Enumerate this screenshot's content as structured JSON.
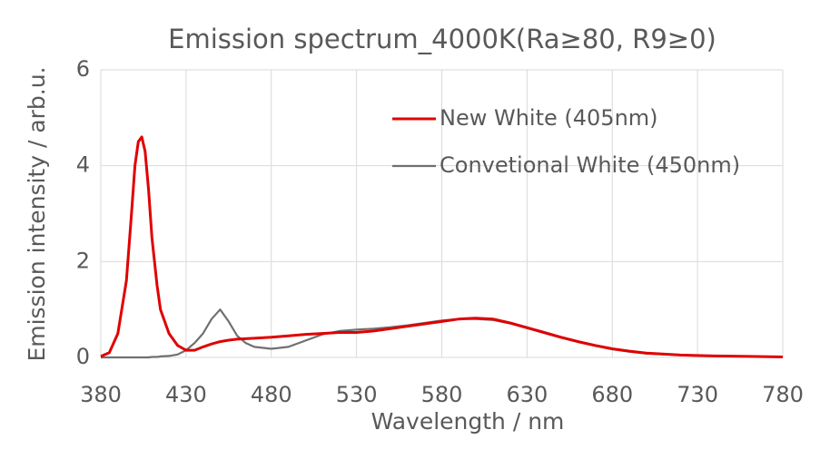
{
  "chart_data": {
    "type": "line",
    "title": "Emission spectrum_4000K(Ra≥80, R9≥0)",
    "x_label": "Wavelength / nm",
    "y_label": "Emission intensity / arb.u.",
    "x": [
      380,
      385,
      390,
      395,
      398,
      400,
      402,
      404,
      406,
      408,
      410,
      413,
      415,
      420,
      425,
      430,
      435,
      440,
      445,
      450,
      455,
      460,
      465,
      470,
      480,
      490,
      500,
      510,
      520,
      530,
      540,
      550,
      560,
      570,
      580,
      590,
      600,
      610,
      620,
      630,
      640,
      650,
      660,
      670,
      680,
      690,
      700,
      720,
      740,
      760,
      780
    ],
    "series": [
      {
        "name": "New White (405nm)",
        "color": "#e00000",
        "values": [
          0.02,
          0.1,
          0.5,
          1.6,
          3.0,
          4.0,
          4.5,
          4.6,
          4.3,
          3.5,
          2.5,
          1.5,
          1.0,
          0.5,
          0.25,
          0.15,
          0.15,
          0.22,
          0.28,
          0.33,
          0.36,
          0.38,
          0.39,
          0.4,
          0.42,
          0.45,
          0.48,
          0.5,
          0.52,
          0.52,
          0.55,
          0.6,
          0.65,
          0.7,
          0.75,
          0.8,
          0.82,
          0.8,
          0.72,
          0.62,
          0.52,
          0.42,
          0.33,
          0.25,
          0.18,
          0.13,
          0.09,
          0.05,
          0.03,
          0.02,
          0.01
        ]
      },
      {
        "name": "Convetional White (450nm)",
        "color": "#707070",
        "values": [
          0,
          0,
          0,
          0,
          0,
          0,
          0,
          0,
          0,
          0,
          0.01,
          0.01,
          0.02,
          0.03,
          0.06,
          0.15,
          0.3,
          0.5,
          0.8,
          1.0,
          0.75,
          0.45,
          0.3,
          0.22,
          0.18,
          0.22,
          0.35,
          0.48,
          0.55,
          0.58,
          0.6,
          0.63,
          0.67,
          0.72,
          0.77,
          0.8,
          0.8,
          0.78,
          0.71,
          0.61,
          0.51,
          0.41,
          0.32,
          0.24,
          0.17,
          0.12,
          0.08,
          0.05,
          0.03,
          0.02,
          0.01
        ]
      }
    ],
    "xlim": [
      380,
      780
    ],
    "xticks": [
      380,
      430,
      480,
      530,
      580,
      630,
      680,
      730,
      780
    ],
    "ylim": [
      0,
      6
    ],
    "yticks": [
      0,
      2,
      4,
      6
    ],
    "grid": true,
    "legend": "upper right"
  }
}
